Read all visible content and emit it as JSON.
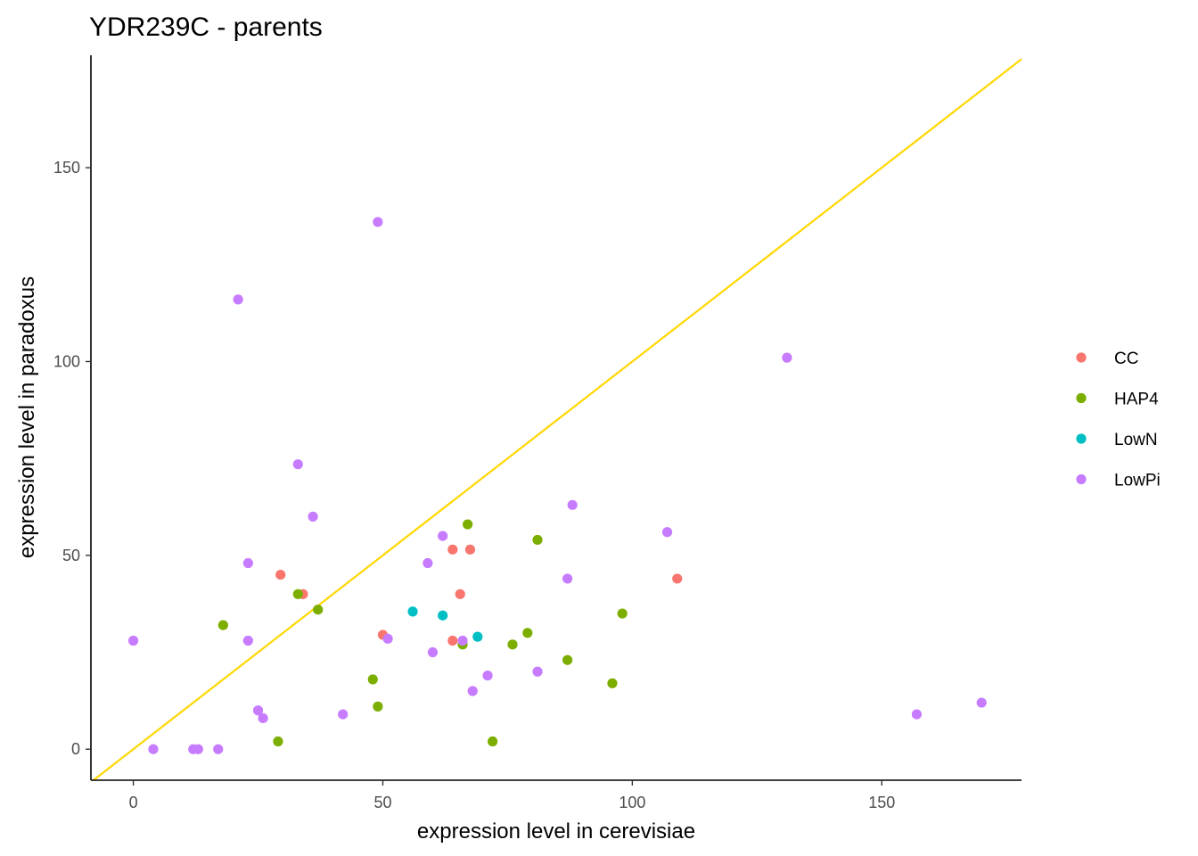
{
  "chart_data": {
    "type": "scatter",
    "title": "YDR239C - parents",
    "xlabel": "expression level in cerevisiae",
    "ylabel": "expression level in paradoxus",
    "xlim": [
      -8.5,
      178
    ],
    "ylim": [
      -8,
      179
    ],
    "x_ticks": [
      0,
      50,
      100,
      150
    ],
    "y_ticks": [
      0,
      50,
      100,
      150
    ],
    "grid": false,
    "legend_position": "right",
    "reference_line": {
      "type": "identity",
      "color": "#FFD700"
    },
    "series": [
      {
        "name": "CC",
        "color": "#F8766D",
        "points": [
          [
            29.5,
            45
          ],
          [
            34,
            40
          ],
          [
            50,
            29.5
          ],
          [
            64,
            51.5
          ],
          [
            67.5,
            51.5
          ],
          [
            65.5,
            40
          ],
          [
            64,
            28
          ],
          [
            109,
            44
          ]
        ]
      },
      {
        "name": "HAP4",
        "color": "#7CAE00",
        "points": [
          [
            18,
            32
          ],
          [
            33,
            40
          ],
          [
            37,
            36
          ],
          [
            29,
            2
          ],
          [
            48,
            18
          ],
          [
            49,
            11
          ],
          [
            66,
            27
          ],
          [
            67,
            58
          ],
          [
            72,
            2
          ],
          [
            76,
            27
          ],
          [
            79,
            30
          ],
          [
            81,
            54
          ],
          [
            87,
            23
          ],
          [
            96,
            17
          ],
          [
            98,
            35
          ]
        ]
      },
      {
        "name": "LowN",
        "color": "#00BFC4",
        "points": [
          [
            56,
            35.5
          ],
          [
            62,
            34.5
          ],
          [
            69,
            29
          ]
        ]
      },
      {
        "name": "LowPi",
        "color": "#C77CFF",
        "points": [
          [
            0,
            28
          ],
          [
            4,
            0
          ],
          [
            12,
            0
          ],
          [
            13,
            0
          ],
          [
            17,
            0
          ],
          [
            21,
            116
          ],
          [
            23,
            48
          ],
          [
            23,
            28
          ],
          [
            25,
            10
          ],
          [
            26,
            8
          ],
          [
            33,
            73.5
          ],
          [
            36,
            60
          ],
          [
            42,
            9
          ],
          [
            49,
            136
          ],
          [
            51,
            28.5
          ],
          [
            59,
            48
          ],
          [
            60,
            25
          ],
          [
            62,
            55
          ],
          [
            66,
            28
          ],
          [
            68,
            15
          ],
          [
            71,
            19
          ],
          [
            81,
            20
          ],
          [
            87,
            44
          ],
          [
            88,
            63
          ],
          [
            107,
            56
          ],
          [
            131,
            101
          ],
          [
            157,
            9
          ],
          [
            170,
            12
          ]
        ]
      }
    ]
  }
}
